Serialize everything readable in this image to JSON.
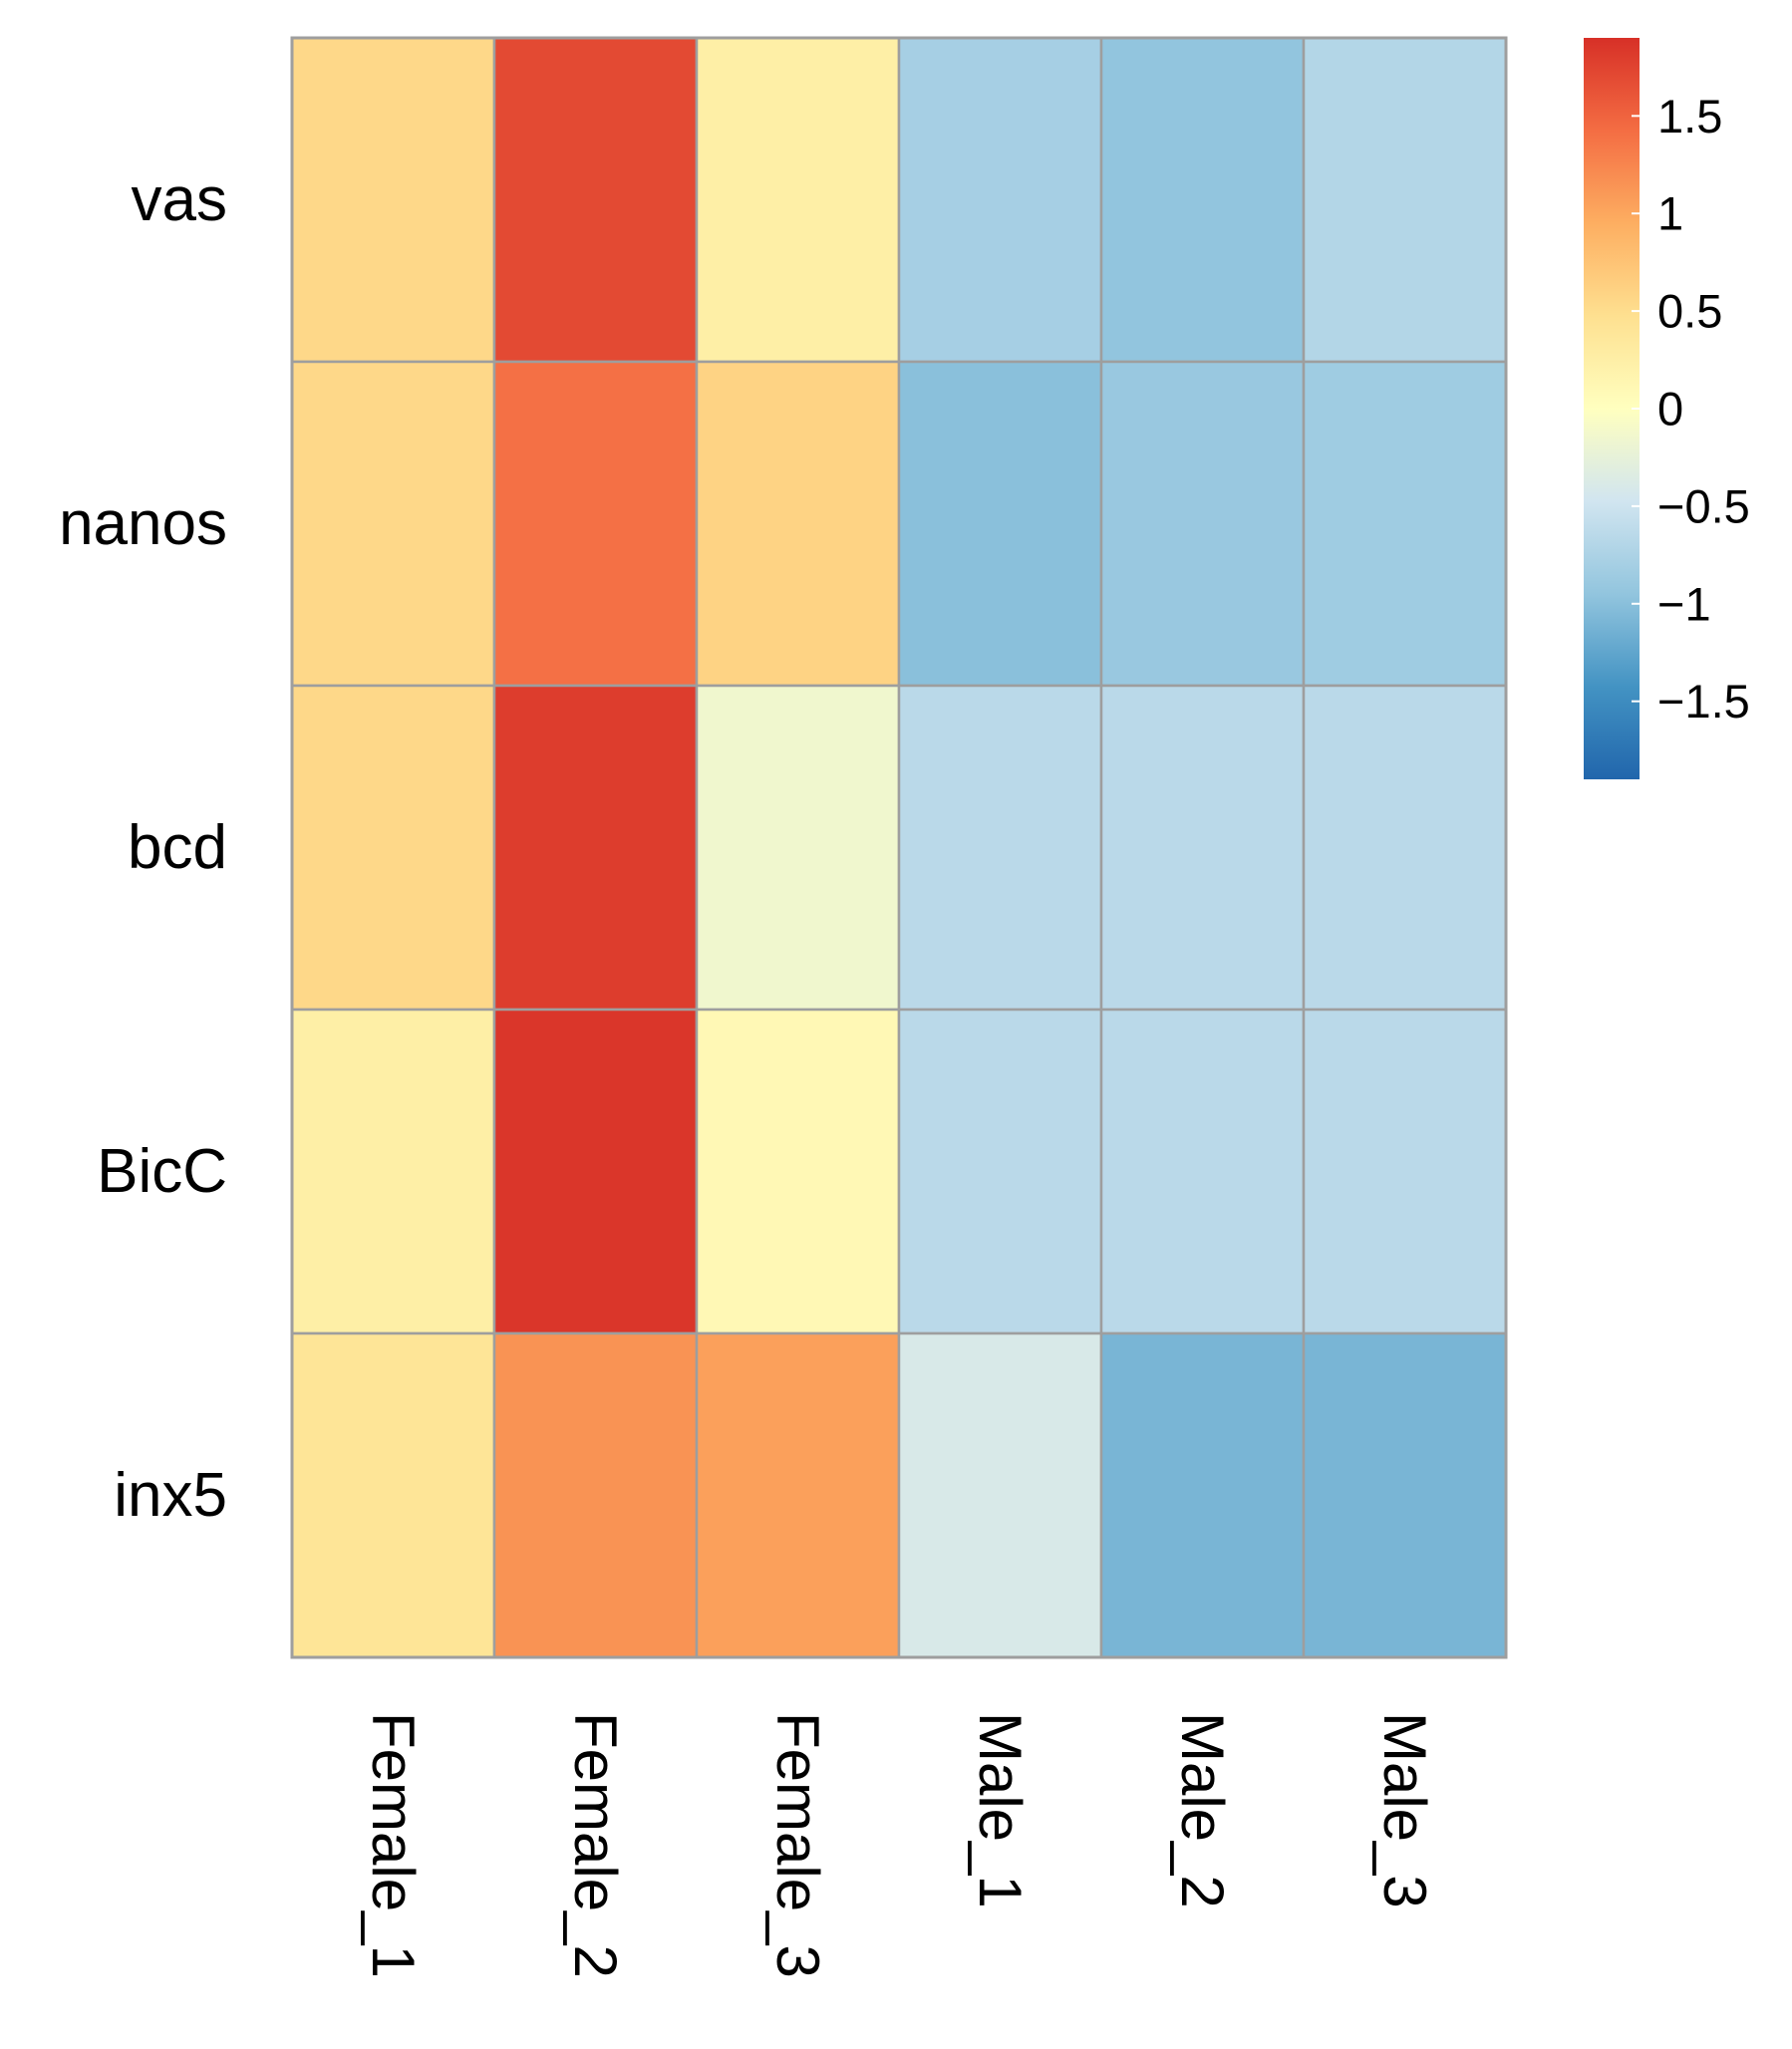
{
  "chart_data": {
    "type": "heatmap",
    "title": "",
    "rows": [
      "vas",
      "nanos",
      "bcd",
      "BicC",
      "inx5"
    ],
    "columns": [
      "Female_1",
      "Female_2",
      "Female_3",
      "Male_1",
      "Male_2",
      "Male_3"
    ],
    "values": [
      [
        0.55,
        1.7,
        0.25,
        -0.8,
        -0.95,
        -0.7
      ],
      [
        0.55,
        1.4,
        0.6,
        -1.0,
        -0.9,
        -0.85
      ],
      [
        0.55,
        1.8,
        -0.15,
        -0.65,
        -0.65,
        -0.65
      ],
      [
        0.25,
        1.85,
        0.1,
        -0.65,
        -0.65,
        -0.65
      ],
      [
        0.4,
        1.15,
        1.05,
        -0.4,
        -1.1,
        -1.1
      ]
    ],
    "color_scale": {
      "min": -1.9,
      "max": 1.9,
      "ticks": [
        {
          "value": 1.5,
          "label": "1.5"
        },
        {
          "value": 1.0,
          "label": "1"
        },
        {
          "value": 0.5,
          "label": "0.5"
        },
        {
          "value": 0.0,
          "label": "0"
        },
        {
          "value": -0.5,
          "label": "−0.5"
        },
        {
          "value": -1.0,
          "label": "−1"
        },
        {
          "value": -1.5,
          "label": "−1.5"
        }
      ],
      "stops": [
        "#2166ac",
        "#4393c3",
        "#92c5de",
        "#d1e5f0",
        "#ffffbf",
        "#fee090",
        "#fdae61",
        "#f46d43",
        "#d73027"
      ],
      "legend_position": "top-right"
    },
    "grid_color": "#9e9e9e"
  }
}
